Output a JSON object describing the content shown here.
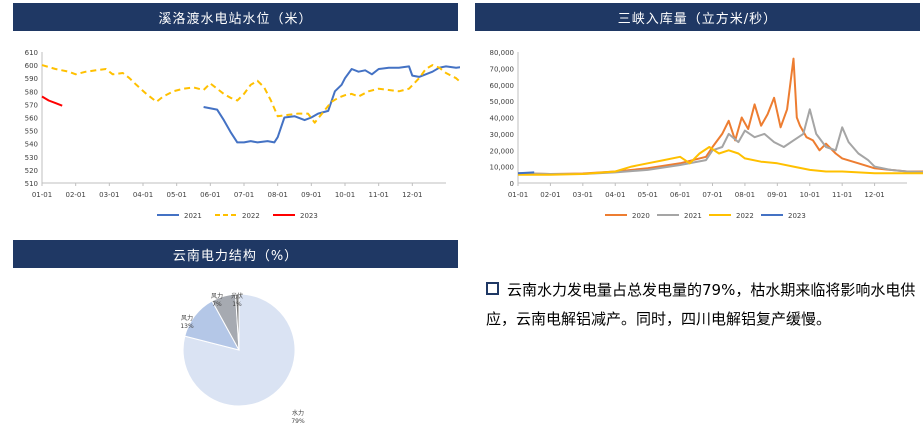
{
  "charts": {
    "left_top": {
      "title": "溪洛渡水电站水位（米）"
    },
    "right_top": {
      "title": "三峡入库量（立方米/秒）"
    },
    "left_bottom": {
      "title": "云南电力结构（%）"
    }
  },
  "note": {
    "text": "云南水力发电量占总发电量的79%，枯水期来临将影响水电供应，云南电解铝减产。同时，四川电解铝复产缓慢。"
  },
  "chart_data": [
    {
      "type": "line",
      "title": "溪洛渡水电站水位（米）",
      "ylim": [
        510,
        610
      ],
      "yticks": [
        510,
        520,
        530,
        540,
        550,
        560,
        570,
        580,
        590,
        600,
        610
      ],
      "xticks": [
        "01-01",
        "02-01",
        "03-01",
        "04-01",
        "05-01",
        "06-01",
        "07-01",
        "08-01",
        "09-01",
        "10-01",
        "11-01",
        "12-01"
      ],
      "series": [
        {
          "name": "2021",
          "color": "#4472c4",
          "dash": false,
          "points": [
            [
              4.8,
              568
            ],
            [
              5.2,
              566
            ],
            [
              5.4,
              558
            ],
            [
              5.6,
              549
            ],
            [
              5.8,
              541
            ],
            [
              6.0,
              541
            ],
            [
              6.2,
              542
            ],
            [
              6.4,
              541
            ],
            [
              6.7,
              542
            ],
            [
              6.9,
              541
            ],
            [
              7.0,
              545
            ],
            [
              7.2,
              560
            ],
            [
              7.5,
              561
            ],
            [
              7.8,
              558
            ],
            [
              8.0,
              560
            ],
            [
              8.2,
              563
            ],
            [
              8.5,
              565
            ],
            [
              8.7,
              580
            ],
            [
              8.9,
              585
            ],
            [
              9.0,
              590
            ],
            [
              9.2,
              597
            ],
            [
              9.4,
              595
            ],
            [
              9.6,
              596
            ],
            [
              9.8,
              593
            ],
            [
              10.0,
              597
            ],
            [
              10.3,
              598
            ],
            [
              10.6,
              598
            ],
            [
              10.9,
              599
            ],
            [
              11.0,
              592
            ],
            [
              11.2,
              591
            ],
            [
              11.4,
              593
            ],
            [
              11.6,
              595
            ],
            [
              11.8,
              598
            ],
            [
              12.0,
              599
            ],
            [
              12.3,
              598
            ],
            [
              12.6,
              599
            ],
            [
              12.9,
              598
            ]
          ]
        },
        {
          "name": "2022",
          "color": "#ffc000",
          "dash": true,
          "points": [
            [
              0.0,
              600
            ],
            [
              0.4,
              597
            ],
            [
              0.8,
              595
            ],
            [
              1.0,
              593
            ],
            [
              1.3,
              595
            ],
            [
              1.6,
              596
            ],
            [
              1.9,
              597
            ],
            [
              2.1,
              593
            ],
            [
              2.4,
              594
            ],
            [
              2.6,
              590
            ],
            [
              2.8,
              585
            ],
            [
              3.1,
              578
            ],
            [
              3.4,
              572
            ],
            [
              3.6,
              576
            ],
            [
              3.9,
              580
            ],
            [
              4.2,
              582
            ],
            [
              4.5,
              583
            ],
            [
              4.8,
              581
            ],
            [
              5.0,
              586
            ],
            [
              5.2,
              582
            ],
            [
              5.4,
              578
            ],
            [
              5.6,
              575
            ],
            [
              5.8,
              573
            ],
            [
              6.0,
              578
            ],
            [
              6.2,
              585
            ],
            [
              6.4,
              588
            ],
            [
              6.6,
              583
            ],
            [
              6.8,
              573
            ],
            [
              7.0,
              561
            ],
            [
              7.3,
              562
            ],
            [
              7.6,
              563
            ],
            [
              7.9,
              563
            ],
            [
              8.1,
              556
            ],
            [
              8.6,
              572
            ],
            [
              8.8,
              575
            ],
            [
              9.0,
              577
            ],
            [
              9.2,
              578
            ],
            [
              9.4,
              576
            ],
            [
              9.7,
              580
            ],
            [
              10.0,
              582
            ],
            [
              10.3,
              581
            ],
            [
              10.6,
              580
            ],
            [
              10.9,
              582
            ],
            [
              11.2,
              590
            ],
            [
              11.4,
              597
            ],
            [
              11.6,
              600
            ],
            [
              11.8,
              598
            ],
            [
              12.0,
              594
            ],
            [
              12.3,
              590
            ],
            [
              12.6,
              583
            ],
            [
              12.9,
              583
            ],
            [
              13.1,
              582
            ],
            [
              13.3,
              577
            ]
          ]
        },
        {
          "name": "2023",
          "color": "#ff0000",
          "dash": false,
          "points": [
            [
              0.0,
              576
            ],
            [
              0.2,
              573
            ],
            [
              0.4,
              571
            ],
            [
              0.6,
              569
            ]
          ]
        }
      ]
    },
    {
      "type": "line",
      "title": "三峡入库量（立方米/秒）",
      "ylim": [
        0,
        80000
      ],
      "yticks": [
        0,
        10000,
        20000,
        30000,
        40000,
        50000,
        60000,
        70000,
        80000
      ],
      "ytick_labels": [
        "0",
        "10,000",
        "20,000",
        "30,000",
        "40,000",
        "50,000",
        "60,000",
        "70,000",
        "80,000"
      ],
      "xticks": [
        "01-01",
        "02-01",
        "03-01",
        "04-01",
        "05-01",
        "06-01",
        "07-01",
        "08-01",
        "09-01",
        "10-01",
        "11-01",
        "12-01"
      ],
      "series": [
        {
          "name": "2020",
          "color": "#ed7d31",
          "points": [
            [
              0,
              6000
            ],
            [
              1,
              5500
            ],
            [
              2,
              5800
            ],
            [
              3,
              7000
            ],
            [
              4,
              9000
            ],
            [
              5,
              12000
            ],
            [
              5.8,
              16000
            ],
            [
              6,
              22000
            ],
            [
              6.3,
              30000
            ],
            [
              6.5,
              38000
            ],
            [
              6.7,
              26000
            ],
            [
              6.9,
              40000
            ],
            [
              7.1,
              33000
            ],
            [
              7.3,
              48000
            ],
            [
              7.5,
              35000
            ],
            [
              7.7,
              42000
            ],
            [
              7.9,
              52000
            ],
            [
              8.1,
              34000
            ],
            [
              8.3,
              45000
            ],
            [
              8.5,
              76000
            ],
            [
              8.6,
              40000
            ],
            [
              8.7,
              35000
            ],
            [
              8.9,
              28000
            ],
            [
              9.1,
              26000
            ],
            [
              9.3,
              20000
            ],
            [
              9.5,
              24000
            ],
            [
              9.8,
              18000
            ],
            [
              10,
              15000
            ],
            [
              10.5,
              12000
            ],
            [
              11,
              9000
            ],
            [
              11.5,
              8000
            ],
            [
              12,
              7000
            ],
            [
              12.9,
              7000
            ]
          ]
        },
        {
          "name": "2021",
          "color": "#a5a5a5",
          "points": [
            [
              0,
              6000
            ],
            [
              1,
              5500
            ],
            [
              2,
              5500
            ],
            [
              3,
              6500
            ],
            [
              4,
              8000
            ],
            [
              5,
              11000
            ],
            [
              5.8,
              14000
            ],
            [
              6,
              20000
            ],
            [
              6.3,
              22000
            ],
            [
              6.5,
              30000
            ],
            [
              6.8,
              25000
            ],
            [
              7,
              32000
            ],
            [
              7.3,
              28000
            ],
            [
              7.6,
              30000
            ],
            [
              7.9,
              25000
            ],
            [
              8.2,
              22000
            ],
            [
              8.5,
              26000
            ],
            [
              8.8,
              30000
            ],
            [
              9,
              45000
            ],
            [
              9.2,
              30000
            ],
            [
              9.5,
              22000
            ],
            [
              9.8,
              20000
            ],
            [
              10,
              34000
            ],
            [
              10.2,
              25000
            ],
            [
              10.5,
              18000
            ],
            [
              10.8,
              14000
            ],
            [
              11,
              10000
            ],
            [
              11.5,
              8000
            ],
            [
              12,
              7000
            ],
            [
              12.9,
              6500
            ]
          ]
        },
        {
          "name": "2022",
          "color": "#ffc000",
          "points": [
            [
              0,
              5000
            ],
            [
              1,
              5000
            ],
            [
              2,
              5500
            ],
            [
              3,
              7000
            ],
            [
              3.5,
              10000
            ],
            [
              4,
              12000
            ],
            [
              4.5,
              14000
            ],
            [
              5,
              16000
            ],
            [
              5.3,
              12000
            ],
            [
              5.6,
              18000
            ],
            [
              5.9,
              22000
            ],
            [
              6.2,
              18000
            ],
            [
              6.5,
              20000
            ],
            [
              6.8,
              18000
            ],
            [
              7,
              15000
            ],
            [
              7.5,
              13000
            ],
            [
              8,
              12000
            ],
            [
              8.5,
              10000
            ],
            [
              9,
              8000
            ],
            [
              9.5,
              7000
            ],
            [
              10,
              7000
            ],
            [
              10.5,
              6500
            ],
            [
              11,
              6000
            ],
            [
              11.5,
              6000
            ],
            [
              12,
              6000
            ],
            [
              12.9,
              6000
            ]
          ]
        },
        {
          "name": "2023",
          "color": "#4472c4",
          "points": [
            [
              0,
              6000
            ],
            [
              0.5,
              6500
            ]
          ]
        }
      ]
    },
    {
      "type": "pie",
      "title": "云南电力结构（%）",
      "slices": [
        {
          "label": "水力",
          "value": 79,
          "display": "79%",
          "color": "#dae3f3"
        },
        {
          "label": "风力",
          "value": 13,
          "display": "13%",
          "color": "#b4c7e7"
        },
        {
          "label": "风力",
          "value": 7,
          "display": "7%",
          "color": "#a6aab1"
        },
        {
          "label": "光伏",
          "value": 1,
          "display": "1%",
          "color": "#7f7f7f"
        }
      ]
    }
  ]
}
